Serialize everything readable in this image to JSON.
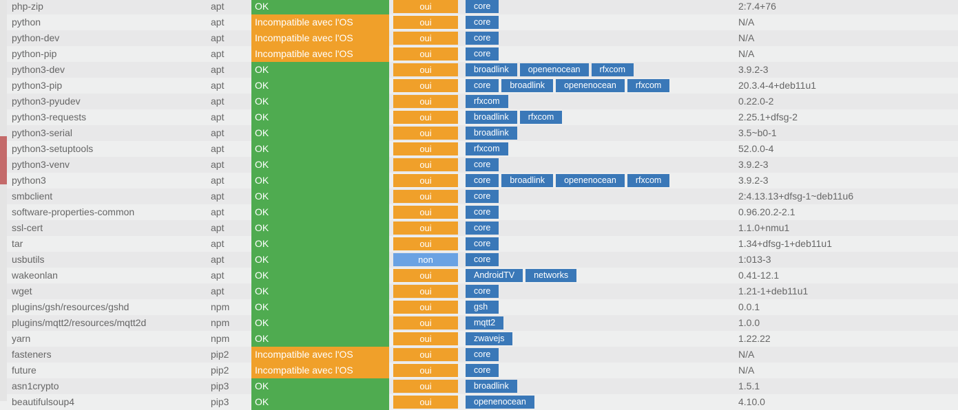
{
  "colors": {
    "ok": "#4fab50",
    "incompatible": "#f0a02a",
    "oui": "#f0a02a",
    "non": "#6aa2e3",
    "tag": "#3a78b8"
  },
  "rows": [
    {
      "name": "php-zip",
      "type": "apt",
      "status": "OK",
      "auto": "oui",
      "tags": [
        "core"
      ],
      "version": "2:7.4+76"
    },
    {
      "name": "python",
      "type": "apt",
      "status": "Incompatible avec l'OS",
      "auto": "oui",
      "tags": [
        "core"
      ],
      "version": "N/A"
    },
    {
      "name": "python-dev",
      "type": "apt",
      "status": "Incompatible avec l'OS",
      "auto": "oui",
      "tags": [
        "core"
      ],
      "version": "N/A"
    },
    {
      "name": "python-pip",
      "type": "apt",
      "status": "Incompatible avec l'OS",
      "auto": "oui",
      "tags": [
        "core"
      ],
      "version": "N/A"
    },
    {
      "name": "python3-dev",
      "type": "apt",
      "status": "OK",
      "auto": "oui",
      "tags": [
        "broadlink",
        "openenocean",
        "rfxcom"
      ],
      "version": "3.9.2-3"
    },
    {
      "name": "python3-pip",
      "type": "apt",
      "status": "OK",
      "auto": "oui",
      "tags": [
        "core",
        "broadlink",
        "openenocean",
        "rfxcom"
      ],
      "version": "20.3.4-4+deb11u1"
    },
    {
      "name": "python3-pyudev",
      "type": "apt",
      "status": "OK",
      "auto": "oui",
      "tags": [
        "rfxcom"
      ],
      "version": "0.22.0-2"
    },
    {
      "name": "python3-requests",
      "type": "apt",
      "status": "OK",
      "auto": "oui",
      "tags": [
        "broadlink",
        "rfxcom"
      ],
      "version": "2.25.1+dfsg-2"
    },
    {
      "name": "python3-serial",
      "type": "apt",
      "status": "OK",
      "auto": "oui",
      "tags": [
        "broadlink"
      ],
      "version": "3.5~b0-1"
    },
    {
      "name": "python3-setuptools",
      "type": "apt",
      "status": "OK",
      "auto": "oui",
      "tags": [
        "rfxcom"
      ],
      "version": "52.0.0-4"
    },
    {
      "name": "python3-venv",
      "type": "apt",
      "status": "OK",
      "auto": "oui",
      "tags": [
        "core"
      ],
      "version": "3.9.2-3"
    },
    {
      "name": "python3",
      "type": "apt",
      "status": "OK",
      "auto": "oui",
      "tags": [
        "core",
        "broadlink",
        "openenocean",
        "rfxcom"
      ],
      "version": "3.9.2-3"
    },
    {
      "name": "smbclient",
      "type": "apt",
      "status": "OK",
      "auto": "oui",
      "tags": [
        "core"
      ],
      "version": "2:4.13.13+dfsg-1~deb11u6"
    },
    {
      "name": "software-properties-common",
      "type": "apt",
      "status": "OK",
      "auto": "oui",
      "tags": [
        "core"
      ],
      "version": "0.96.20.2-2.1"
    },
    {
      "name": "ssl-cert",
      "type": "apt",
      "status": "OK",
      "auto": "oui",
      "tags": [
        "core"
      ],
      "version": "1.1.0+nmu1"
    },
    {
      "name": "tar",
      "type": "apt",
      "status": "OK",
      "auto": "oui",
      "tags": [
        "core"
      ],
      "version": "1.34+dfsg-1+deb11u1"
    },
    {
      "name": "usbutils",
      "type": "apt",
      "status": "OK",
      "auto": "non",
      "tags": [
        "core"
      ],
      "version": "1:013-3"
    },
    {
      "name": "wakeonlan",
      "type": "apt",
      "status": "OK",
      "auto": "oui",
      "tags": [
        "AndroidTV",
        "networks"
      ],
      "version": "0.41-12.1"
    },
    {
      "name": "wget",
      "type": "apt",
      "status": "OK",
      "auto": "oui",
      "tags": [
        "core"
      ],
      "version": "1.21-1+deb11u1"
    },
    {
      "name": "plugins/gsh/resources/gshd",
      "type": "npm",
      "status": "OK",
      "auto": "oui",
      "tags": [
        "gsh"
      ],
      "version": "0.0.1"
    },
    {
      "name": "plugins/mqtt2/resources/mqtt2d",
      "type": "npm",
      "status": "OK",
      "auto": "oui",
      "tags": [
        "mqtt2"
      ],
      "version": "1.0.0"
    },
    {
      "name": "yarn",
      "type": "npm",
      "status": "OK",
      "auto": "oui",
      "tags": [
        "zwavejs"
      ],
      "version": "1.22.22"
    },
    {
      "name": "fasteners",
      "type": "pip2",
      "status": "Incompatible avec l'OS",
      "auto": "oui",
      "tags": [
        "core"
      ],
      "version": "N/A"
    },
    {
      "name": "future",
      "type": "pip2",
      "status": "Incompatible avec l'OS",
      "auto": "oui",
      "tags": [
        "core"
      ],
      "version": "N/A"
    },
    {
      "name": "asn1crypto",
      "type": "pip3",
      "status": "OK",
      "auto": "oui",
      "tags": [
        "broadlink"
      ],
      "version": "1.5.1"
    },
    {
      "name": "beautifulsoup4",
      "type": "pip3",
      "status": "OK",
      "auto": "oui",
      "tags": [
        "openenocean"
      ],
      "version": "4.10.0"
    }
  ]
}
